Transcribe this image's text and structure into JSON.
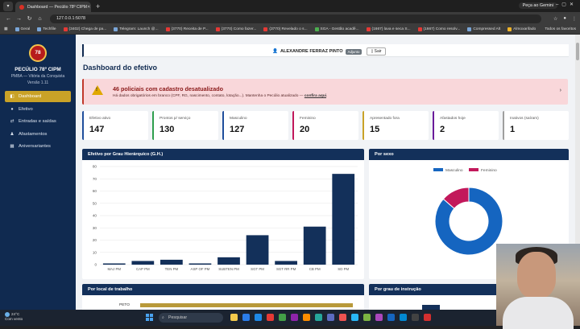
{
  "browser": {
    "tab_title": "Dashboard — Pecúlio 78º CIPM",
    "url": "127.0.0.1:5078",
    "gemini_label": "Peça ao Gemini",
    "bookmarks": [
      {
        "label": "Geral",
        "color": "b"
      },
      {
        "label": "Techfile",
        "color": "b"
      },
      {
        "label": "(3402) Chega de pa...",
        "color": "r"
      },
      {
        "label": "Telegram: Launch @...",
        "color": "b"
      },
      {
        "label": "(3770) Receita de P...",
        "color": "r"
      },
      {
        "label": "(3770) Como fazer...",
        "color": "r"
      },
      {
        "label": "(3770) Revelado o s...",
        "color": "r"
      },
      {
        "label": "SGA - Gestão acadê...",
        "color": "g"
      },
      {
        "label": "(1667) lava e seca S...",
        "color": "r"
      },
      {
        "label": "(1667) Como resolv...",
        "color": "r"
      },
      {
        "label": "Compressed Alt",
        "color": "b"
      },
      {
        "label": "Almoxarifado",
        "color": "y"
      }
    ],
    "all_bookmarks": "Todos os favoritos"
  },
  "sidebar": {
    "logo_text": "78",
    "title": "PECÚLIO 78º CIPM",
    "subtitle": "PMBA — Vitória da Conquista",
    "version": "Versão 1.11",
    "items": [
      {
        "label": "Dashboard",
        "icon": "gauge-icon",
        "glyph": "◧",
        "active": true
      },
      {
        "label": "Efetivo",
        "icon": "user-icon",
        "glyph": "●"
      },
      {
        "label": "Entradas e saídas",
        "icon": "exchange-icon",
        "glyph": "⇄"
      },
      {
        "label": "Afastamentos",
        "icon": "people-icon",
        "glyph": "♟"
      },
      {
        "label": "Aniversariantes",
        "icon": "calendar-icon",
        "glyph": "▦"
      }
    ]
  },
  "header": {
    "user_icon": "user-icon",
    "user_name": "ALEXANDRE FERRAZ PINTO",
    "role_badge": "Adjunto",
    "logout_label": "Sair"
  },
  "page_title": "Dashboard do efetivo",
  "alert": {
    "title": "46 policiais com cadastro desatualizado",
    "desc_prefix": "Há dados obrigatórios em branco (CPF, RG, nascimento, contato, lotação...). Mantenha o Pecúlio atualizado — ",
    "link": "confira aqui",
    "desc_suffix": "."
  },
  "cards": [
    {
      "label": "Efetivo ativo",
      "value": "147",
      "color": "#1f4e9c"
    },
    {
      "label": "Prontos p/ serviço",
      "value": "130",
      "color": "#2e9e4d"
    },
    {
      "label": "Masculino",
      "value": "127",
      "color": "#1f4e9c"
    },
    {
      "label": "Feminino",
      "value": "20",
      "color": "#c2185b"
    },
    {
      "label": "Apresentado fora",
      "value": "15",
      "color": "#c9a227"
    },
    {
      "label": "Afastados hoje",
      "value": "2",
      "color": "#6a1b9a"
    },
    {
      "label": "Inativos (saíram)",
      "value": "1",
      "color": "#9e9e9e"
    }
  ],
  "panels": {
    "grade_title": "Efetivo por Grau Hierárquico (G.H.)",
    "sex_title": "Por sexo",
    "local_title": "Por local de trabalho",
    "instr_title": "Por grau de instrução",
    "local_first_label": "PETO"
  },
  "chart_data": [
    {
      "type": "bar",
      "title": "Efetivo por Grau Hierárquico (G.H.)",
      "categories": [
        "MAJ PM",
        "CAP PM",
        "TEN PM",
        "ASP OF PM",
        "SUBTEN PM",
        "SGT PM",
        "SGT RR PM",
        "CB PM",
        "SD PM"
      ],
      "values": [
        1,
        3,
        4,
        1,
        6,
        24,
        3,
        31,
        74
      ],
      "ylim": [
        0,
        80
      ],
      "yticks": [
        0,
        10,
        20,
        30,
        40,
        50,
        60,
        70,
        80
      ],
      "color": "#13305a",
      "grid": true
    },
    {
      "type": "pie",
      "title": "Por sexo",
      "labels": [
        "Masculino",
        "Feminino"
      ],
      "values": [
        127,
        20
      ],
      "colors": [
        "#1565c0",
        "#c2185b"
      ],
      "legend": "top"
    }
  ],
  "taskbar": {
    "temp": "24°C",
    "weather": "Com vento",
    "search_placeholder": "Pesquisar"
  }
}
